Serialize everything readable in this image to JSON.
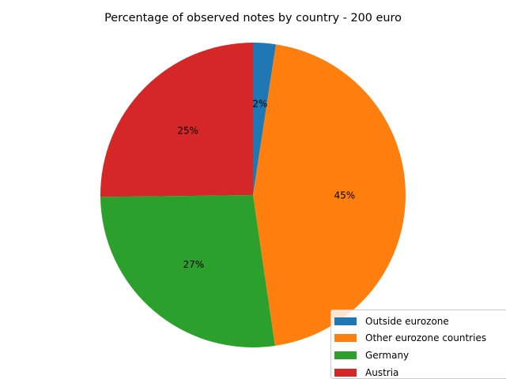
{
  "chart_data": {
    "type": "pie",
    "title": "Percentage of observed notes by country - 200 euro",
    "categories": [
      "Outside eurozone",
      "Other eurozone countries",
      "Germany",
      "Austria"
    ],
    "values": [
      2.4,
      45.3,
      27.1,
      25.2
    ],
    "labels": [
      "2%",
      "45%",
      "27%",
      "25%"
    ],
    "colors": [
      "#1f77b4",
      "#ff7f0e",
      "#2ca02c",
      "#d62728"
    ],
    "start_angle": 90,
    "direction": "clockwise",
    "legend_position": "bottom-right"
  }
}
